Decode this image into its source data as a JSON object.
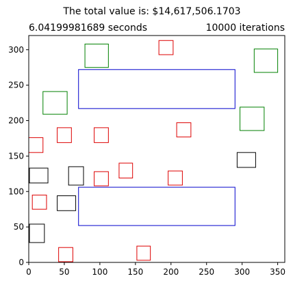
{
  "chart_data": {
    "type": "scatter",
    "title": "The total value is: $14,617,506.1703",
    "subtitle_left": "6.04199981689 seconds",
    "subtitle_right": "10000 iterations",
    "xlabel": "",
    "ylabel": "",
    "xlim": [
      0,
      360
    ],
    "ylim": [
      0,
      320
    ],
    "grid": false,
    "x_ticks": [
      0,
      50,
      100,
      150,
      200,
      250,
      300,
      350
    ],
    "y_ticks": [
      0,
      50,
      100,
      150,
      200,
      250,
      300
    ],
    "colors": {
      "blue": "#0000cc",
      "green": "#008000",
      "red": "#dd0000",
      "black": "#000000"
    },
    "rectangles": [
      {
        "x": 70,
        "y": 217,
        "w": 220,
        "h": 55,
        "color": "blue"
      },
      {
        "x": 70,
        "y": 52,
        "w": 220,
        "h": 54,
        "color": "blue"
      },
      {
        "x": 79,
        "y": 275,
        "w": 33,
        "h": 33,
        "color": "green"
      },
      {
        "x": 317,
        "y": 268,
        "w": 33,
        "h": 33,
        "color": "green"
      },
      {
        "x": 20,
        "y": 209,
        "w": 34,
        "h": 32,
        "color": "green"
      },
      {
        "x": 297,
        "y": 186,
        "w": 34,
        "h": 33,
        "color": "green"
      },
      {
        "x": 183,
        "y": 293,
        "w": 20,
        "h": 20,
        "color": "red"
      },
      {
        "x": 208,
        "y": 177,
        "w": 20,
        "h": 20,
        "color": "red"
      },
      {
        "x": 40,
        "y": 169,
        "w": 20,
        "h": 21,
        "color": "red"
      },
      {
        "x": 92,
        "y": 169,
        "w": 20,
        "h": 21,
        "color": "red"
      },
      {
        "x": 0,
        "y": 155,
        "w": 20,
        "h": 21,
        "color": "red"
      },
      {
        "x": 127,
        "y": 119,
        "w": 19,
        "h": 21,
        "color": "red"
      },
      {
        "x": 92,
        "y": 108,
        "w": 20,
        "h": 20,
        "color": "red"
      },
      {
        "x": 196,
        "y": 109,
        "w": 20,
        "h": 20,
        "color": "red"
      },
      {
        "x": 5,
        "y": 75,
        "w": 20,
        "h": 20,
        "color": "red"
      },
      {
        "x": 42,
        "y": 1,
        "w": 20,
        "h": 20,
        "color": "red"
      },
      {
        "x": 152,
        "y": 3,
        "w": 19,
        "h": 20,
        "color": "red"
      },
      {
        "x": 293,
        "y": 134,
        "w": 26,
        "h": 21,
        "color": "black"
      },
      {
        "x": 1,
        "y": 112,
        "w": 26,
        "h": 21,
        "color": "black"
      },
      {
        "x": 56,
        "y": 109,
        "w": 21,
        "h": 26,
        "color": "black"
      },
      {
        "x": 40,
        "y": 73,
        "w": 26,
        "h": 21,
        "color": "black"
      },
      {
        "x": 1,
        "y": 28,
        "w": 21,
        "h": 26,
        "color": "black"
      }
    ]
  }
}
